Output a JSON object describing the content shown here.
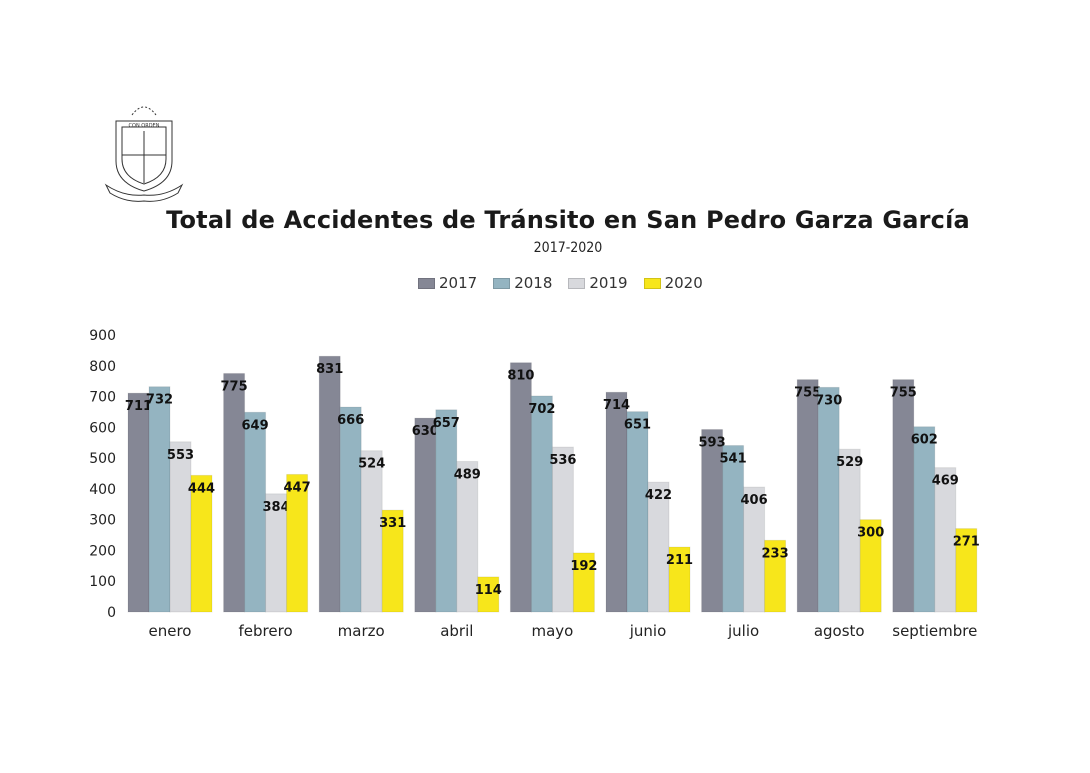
{
  "chart_data": {
    "type": "bar",
    "title": "Total de Accidentes de Tránsito en San Pedro Garza García",
    "subtitle": "2017-2020",
    "xlabel": "",
    "ylabel": "",
    "ylim": [
      0,
      900
    ],
    "yticks": [
      0,
      100,
      200,
      300,
      400,
      500,
      600,
      700,
      800,
      900
    ],
    "grid": false,
    "legend_position": "top-center",
    "categories": [
      "enero",
      "febrero",
      "marzo",
      "abril",
      "mayo",
      "junio",
      "julio",
      "agosto",
      "septiembre"
    ],
    "series": [
      {
        "name": "2017",
        "color": "#858795",
        "values": [
          711,
          775,
          831,
          630,
          810,
          714,
          593,
          755,
          755
        ]
      },
      {
        "name": "2018",
        "color": "#94b4c1",
        "values": [
          732,
          649,
          666,
          657,
          702,
          651,
          541,
          730,
          602
        ]
      },
      {
        "name": "2019",
        "color": "#d8d9dd",
        "values": [
          553,
          384,
          524,
          489,
          536,
          422,
          406,
          529,
          469
        ]
      },
      {
        "name": "2020",
        "color": "#f7e61b",
        "values": [
          444,
          447,
          331,
          114,
          192,
          211,
          233,
          300,
          271
        ]
      }
    ]
  },
  "logo": {
    "name": "municipal-coat-of-arms",
    "motto": "CON ORDEN",
    "left_text": "LIBERTAD",
    "right_text": "JUSTICIA"
  }
}
